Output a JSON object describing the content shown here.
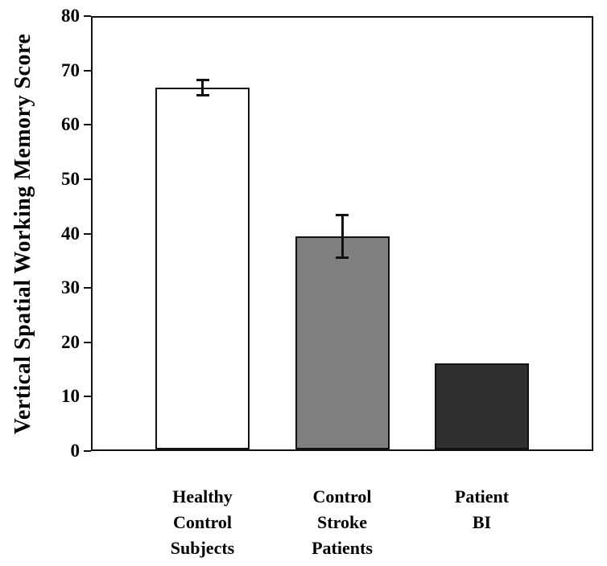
{
  "chart_data": {
    "type": "bar",
    "title": "",
    "ylabel": "Vertical Spatial Working Memory Score",
    "xlabel": "",
    "ylim": [
      0,
      80
    ],
    "yticks": [
      0,
      10,
      20,
      30,
      40,
      50,
      60,
      70,
      80
    ],
    "grid": false,
    "legend": "none",
    "frame": "full-box",
    "axis_color": "#111111",
    "categories": [
      {
        "id": "healthy-control-subjects",
        "lines": [
          "Healthy",
          "Control",
          "Subjects"
        ]
      },
      {
        "id": "control-stroke-patients",
        "lines": [
          "Control",
          "Stroke",
          "Patients"
        ]
      },
      {
        "id": "patient-bi",
        "lines": [
          "Patient",
          "BI"
        ]
      }
    ],
    "series": [
      {
        "name": "Vertical Spatial Working Memory Score",
        "values": [
          67,
          39.5,
          16
        ],
        "error_bars": [
          1.5,
          4,
          0
        ],
        "bar_fill_colors": [
          "#ffffff",
          "#7f7f7f",
          "#303030"
        ],
        "bar_border_color": "#111111"
      }
    ]
  }
}
